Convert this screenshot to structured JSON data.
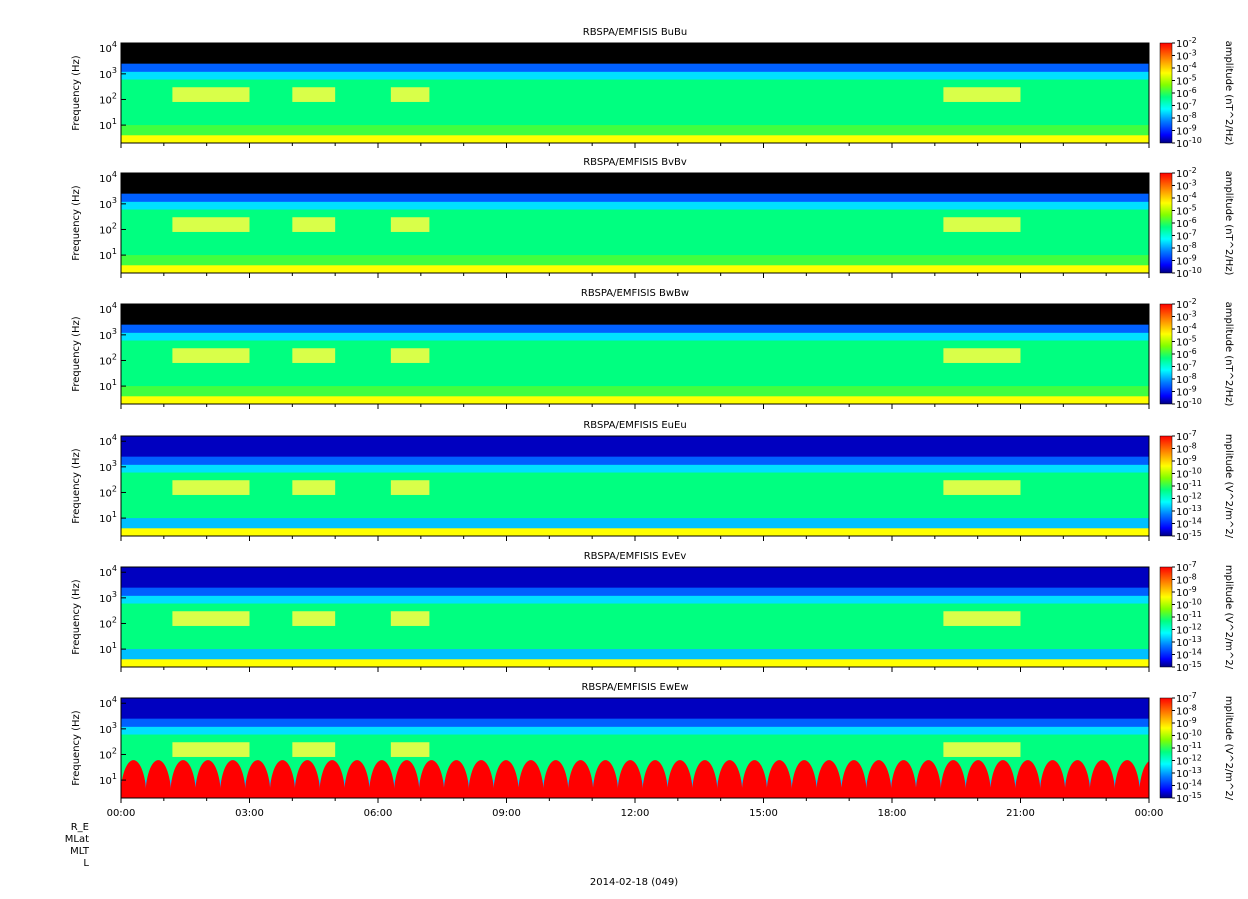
{
  "chart_data": {
    "type": "heatmap",
    "date_label": "2014-02-18 (049)",
    "x_ticks": [
      "00:00",
      "03:00",
      "06:00",
      "09:00",
      "12:00",
      "15:00",
      "18:00",
      "21:00",
      "00:00"
    ],
    "x_range_hours": [
      0,
      24
    ],
    "ephemeris_rows": [
      "R_E",
      "MLat",
      "MLT",
      "L"
    ],
    "ylabel": "Frequency (Hz)",
    "y_scale": "log",
    "ylim": [
      2,
      16000
    ],
    "y_ticks": [
      {
        "value": 10,
        "base": "10",
        "exp": "1"
      },
      {
        "value": 100,
        "base": "10",
        "exp": "2"
      },
      {
        "value": 1000,
        "base": "10",
        "exp": "3"
      },
      {
        "value": 10000,
        "base": "10",
        "exp": "4"
      }
    ],
    "colormap": [
      "#000080",
      "#0000ff",
      "#0080ff",
      "#00ffff",
      "#00ff80",
      "#80ff00",
      "#ffff00",
      "#ff8000",
      "#ff0000"
    ],
    "panels": [
      {
        "title": "RBSPA/EMFISIS  BuBu",
        "colorbar_label": "amplitude (nT^2/Hz)",
        "colorbar_exponents": [
          "-2",
          "-3",
          "-4",
          "-5",
          "-6",
          "-7",
          "-8",
          "-9",
          "-10"
        ]
      },
      {
        "title": "RBSPA/EMFISIS  BvBv",
        "colorbar_label": "amplitude (nT^2/Hz)",
        "colorbar_exponents": [
          "-2",
          "-3",
          "-4",
          "-5",
          "-6",
          "-7",
          "-8",
          "-9",
          "-10"
        ]
      },
      {
        "title": "RBSPA/EMFISIS  BwBw",
        "colorbar_label": "amplitude (nT^2/Hz)",
        "colorbar_exponents": [
          "-2",
          "-3",
          "-4",
          "-5",
          "-6",
          "-7",
          "-8",
          "-9",
          "-10"
        ]
      },
      {
        "title": "RBSPA/EMFISIS  EuEu",
        "colorbar_label": "mplitude (V^2/m^2/",
        "colorbar_exponents": [
          "-7",
          "-8",
          "-9",
          "-10",
          "-11",
          "-12",
          "-13",
          "-14",
          "-15"
        ]
      },
      {
        "title": "RBSPA/EMFISIS  EvEv",
        "colorbar_label": "mplitude (V^2/m^2/",
        "colorbar_exponents": [
          "-7",
          "-8",
          "-9",
          "-10",
          "-11",
          "-12",
          "-13",
          "-14",
          "-15"
        ]
      },
      {
        "title": "RBSPA/EMFISIS  EwEw",
        "colorbar_label": "mplitude (V^2/m^2/",
        "colorbar_exponents": [
          "-7",
          "-8",
          "-9",
          "-10",
          "-11",
          "-12",
          "-13",
          "-14",
          "-15"
        ]
      }
    ]
  }
}
